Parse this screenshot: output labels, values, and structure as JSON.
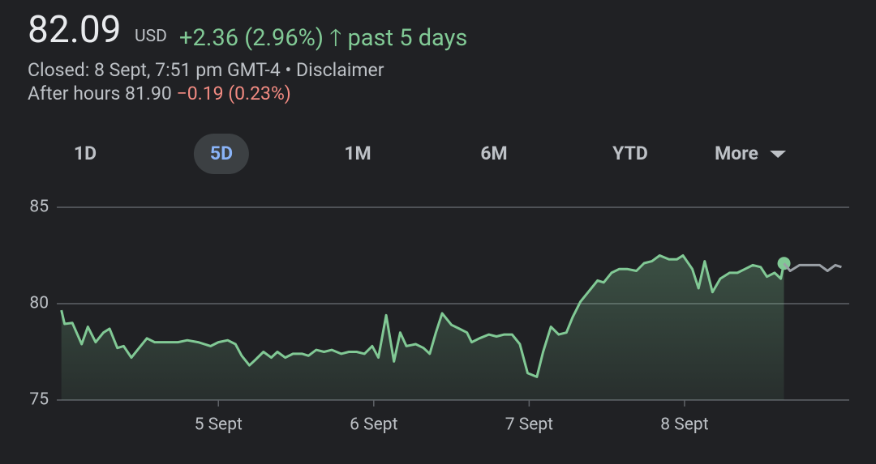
{
  "header": {
    "price": "82.09",
    "currency": "USD",
    "change": "+2.36 (2.96%)",
    "period": "past 5 days",
    "closed": "Closed: 8 Sept, 7:51 pm GMT-4",
    "separator": "•",
    "disclaimer": "Disclaimer",
    "after_hours": "After hours 81.90",
    "after_hours_change": "−0.19 (0.23%)"
  },
  "tabs": [
    {
      "label": "1D"
    },
    {
      "label": "5D",
      "selected": true
    },
    {
      "label": "1M"
    },
    {
      "label": "6M"
    },
    {
      "label": "YTD"
    },
    {
      "label": "More"
    }
  ],
  "chart_data": {
    "type": "line",
    "xlim": [
      -0.04,
      5.06
    ],
    "ylim": [
      75,
      85
    ],
    "yticks": [
      75,
      80,
      85
    ],
    "grid": true,
    "xticks": [
      {
        "value": 1,
        "label": "5 Sept"
      },
      {
        "value": 2,
        "label": "6 Sept"
      },
      {
        "value": 3,
        "label": "7 Sept"
      },
      {
        "value": 4,
        "label": "8 Sept"
      }
    ],
    "series": [
      {
        "color": "#81c995",
        "fill": true,
        "end_marker": true,
        "x": [
          -0.01,
          0.01,
          0.06,
          0.12,
          0.16,
          0.21,
          0.26,
          0.3,
          0.35,
          0.39,
          0.44,
          0.49,
          0.54,
          0.59,
          0.64,
          0.69,
          0.74,
          0.8,
          0.87,
          0.95,
          1.0,
          1.06,
          1.11,
          1.15,
          1.2,
          1.24,
          1.29,
          1.34,
          1.38,
          1.43,
          1.48,
          1.54,
          1.58,
          1.63,
          1.68,
          1.73,
          1.79,
          1.84,
          1.89,
          1.94,
          1.99,
          2.03,
          2.08,
          2.13,
          2.17,
          2.21,
          2.27,
          2.32,
          2.36,
          2.4,
          2.44,
          2.5,
          2.55,
          2.6,
          2.63,
          2.68,
          2.74,
          2.79,
          2.84,
          2.89,
          2.94,
          2.99,
          3.05,
          3.09,
          3.14,
          3.19,
          3.24,
          3.28,
          3.33,
          3.38,
          3.44,
          3.48,
          3.53,
          3.58,
          3.63,
          3.69,
          3.74,
          3.79,
          3.84,
          3.9,
          3.95,
          3.99,
          4.05,
          4.09,
          4.13,
          4.18,
          4.23,
          4.29,
          4.34,
          4.39,
          4.44,
          4.49,
          4.53,
          4.58,
          4.62,
          4.64
        ],
        "values": [
          79.66,
          78.95,
          79.0,
          77.9,
          78.8,
          78.0,
          78.5,
          78.7,
          77.7,
          77.8,
          77.2,
          77.7,
          78.2,
          78.0,
          78.0,
          78.0,
          78.0,
          78.1,
          78.0,
          77.8,
          78.0,
          78.1,
          77.9,
          77.3,
          76.8,
          77.1,
          77.5,
          77.2,
          77.5,
          77.2,
          77.4,
          77.4,
          77.3,
          77.6,
          77.5,
          77.6,
          77.4,
          77.5,
          77.5,
          77.4,
          77.8,
          77.2,
          79.4,
          77.0,
          78.5,
          77.8,
          77.9,
          77.7,
          77.4,
          78.5,
          79.5,
          78.9,
          78.7,
          78.5,
          78.0,
          78.2,
          78.4,
          78.3,
          78.4,
          78.4,
          77.9,
          76.4,
          76.2,
          77.5,
          78.8,
          78.4,
          78.5,
          79.3,
          80.1,
          80.6,
          81.2,
          81.1,
          81.6,
          81.8,
          81.8,
          81.7,
          82.1,
          82.2,
          82.5,
          82.3,
          82.3,
          82.5,
          81.8,
          80.8,
          82.2,
          80.6,
          81.3,
          81.6,
          81.6,
          81.8,
          82.0,
          81.9,
          81.4,
          81.6,
          81.3,
          82.09
        ]
      },
      {
        "color": "#9aa0a6",
        "x": [
          4.64,
          4.68,
          4.74,
          4.8,
          4.87,
          4.92,
          4.97,
          5.01
        ],
        "values": [
          82.09,
          81.7,
          82.0,
          82.0,
          82.0,
          81.7,
          82.0,
          81.9
        ]
      }
    ]
  }
}
